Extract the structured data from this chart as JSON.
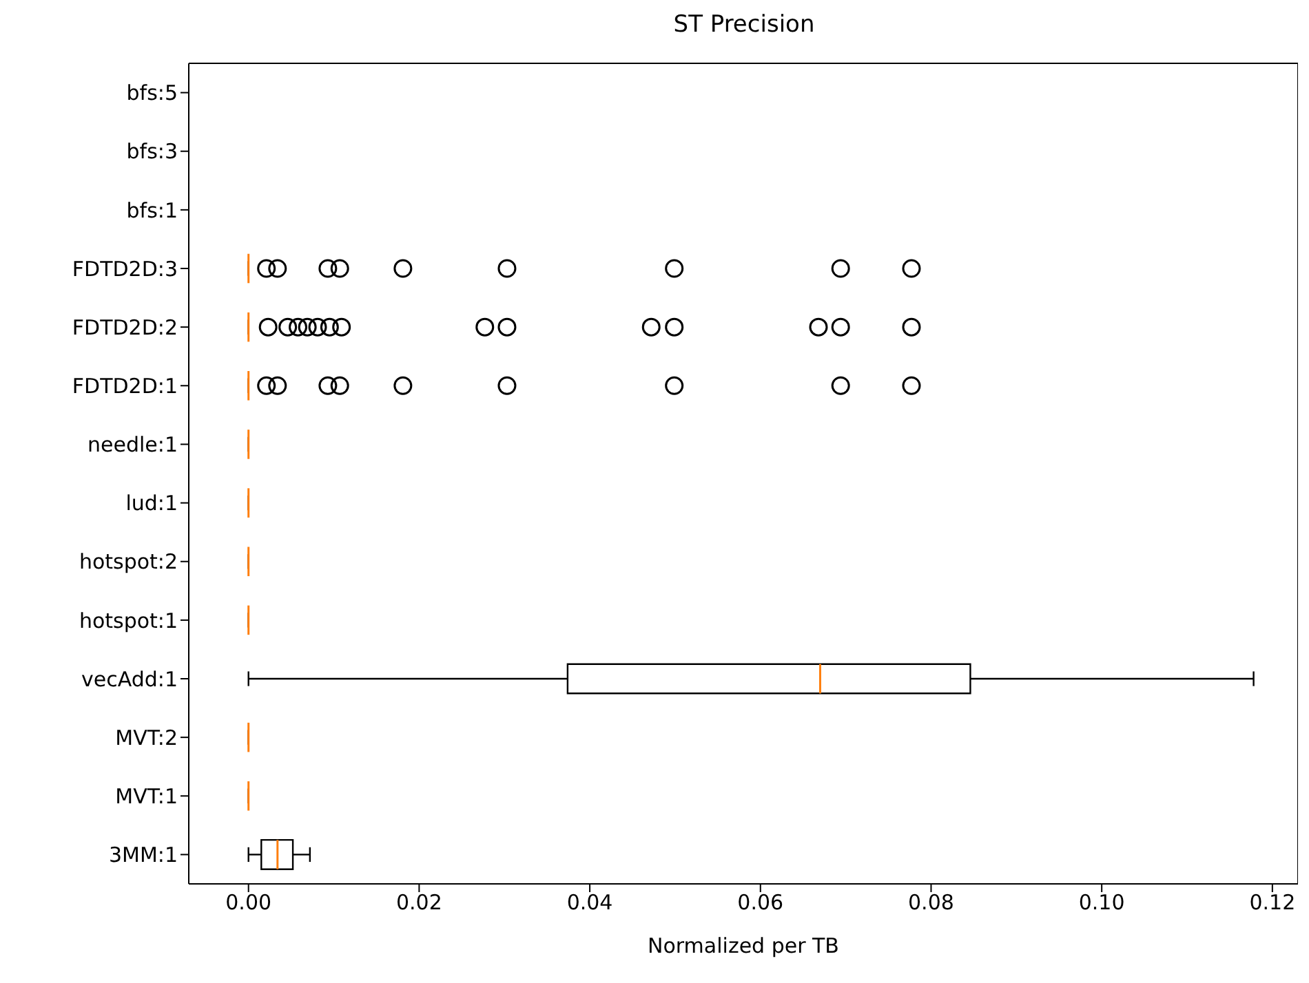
{
  "chart_data": {
    "type": "box",
    "title": "ST Precision",
    "xlabel": "Normalized per TB",
    "orientation": "horizontal",
    "categories": [
      "bfs:5",
      "bfs:3",
      "bfs:1",
      "FDTD2D:3",
      "FDTD2D:2",
      "FDTD2D:1",
      "needle:1",
      "lud:1",
      "hotspot:2",
      "hotspot:1",
      "vecAdd:1",
      "MVT:2",
      "MVT:1",
      "3MM:1"
    ],
    "boxes": [
      null,
      null,
      null,
      {
        "low": 0,
        "q1": 0,
        "median": 0,
        "q3": 0,
        "high": 0,
        "outliers": [
          0.0021,
          0.0034,
          0.0093,
          0.0107,
          0.0181,
          0.0303,
          0.0499,
          0.0694,
          0.0777
        ]
      },
      {
        "low": 0,
        "q1": 0,
        "median": 0,
        "q3": 0,
        "high": 0,
        "outliers": [
          0.0023,
          0.0046,
          0.0058,
          0.0069,
          0.0081,
          0.0095,
          0.0109,
          0.0277,
          0.0303,
          0.0472,
          0.0499,
          0.0668,
          0.0694,
          0.0777
        ]
      },
      {
        "low": 0,
        "q1": 0,
        "median": 0,
        "q3": 0,
        "high": 0,
        "outliers": [
          0.0021,
          0.0034,
          0.0093,
          0.0107,
          0.0181,
          0.0303,
          0.0499,
          0.0694,
          0.0777
        ]
      },
      {
        "low": 0,
        "q1": 0,
        "median": 0,
        "q3": 0,
        "high": 0
      },
      {
        "low": 0,
        "q1": 0,
        "median": 0,
        "q3": 0,
        "high": 0
      },
      {
        "low": 0,
        "q1": 0,
        "median": 0,
        "q3": 0,
        "high": 0
      },
      {
        "low": 0,
        "q1": 0,
        "median": 0,
        "q3": 0,
        "high": 0
      },
      {
        "low": 0,
        "q1": 0.0374,
        "median": 0.067,
        "q3": 0.0846,
        "high": 0.1178
      },
      {
        "low": 0,
        "q1": 0,
        "median": 0,
        "q3": 0,
        "high": 0
      },
      {
        "low": 0,
        "q1": 0,
        "median": 0,
        "q3": 0,
        "high": 0
      },
      {
        "low": 0,
        "q1": 0.0015,
        "median": 0.0034,
        "q3": 0.0052,
        "high": 0.0072
      }
    ],
    "xlim": [
      -0.007,
      0.123
    ],
    "xticks": [
      {
        "value": 0,
        "label": "0.00"
      },
      {
        "value": 0.02,
        "label": "0.02"
      },
      {
        "value": 0.04,
        "label": "0.04"
      },
      {
        "value": 0.06,
        "label": "0.06"
      },
      {
        "value": 0.08,
        "label": "0.08"
      },
      {
        "value": 0.1,
        "label": "0.10"
      },
      {
        "value": 0.12,
        "label": "0.12"
      }
    ]
  }
}
